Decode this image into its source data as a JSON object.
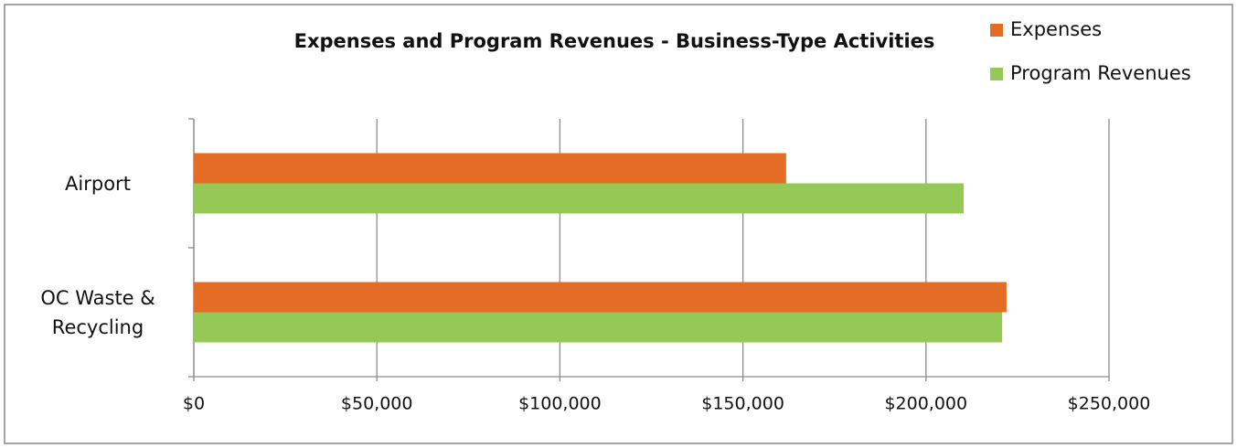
{
  "chart_data": {
    "type": "barh",
    "title": "Expenses and Program Revenues - Business-Type Activities",
    "categories": [
      "Airport",
      "OC Waste & Recycling"
    ],
    "series": [
      {
        "name": "Expenses",
        "color": "#e46c25",
        "values": [
          161800,
          222000
        ]
      },
      {
        "name": "Program Revenues",
        "color": "#93c954",
        "values": [
          210300,
          220800
        ]
      }
    ],
    "xlim": [
      0,
      250000
    ],
    "xticks": [
      {
        "value": 0,
        "label": "$0"
      },
      {
        "value": 50000,
        "label": "$50,000"
      },
      {
        "value": 100000,
        "label": "$100,000"
      },
      {
        "value": 150000,
        "label": "$150,000"
      },
      {
        "value": 200000,
        "label": "$200,000"
      },
      {
        "value": 250000,
        "label": "$250,000"
      }
    ],
    "grid": true,
    "legend": "top-right"
  }
}
